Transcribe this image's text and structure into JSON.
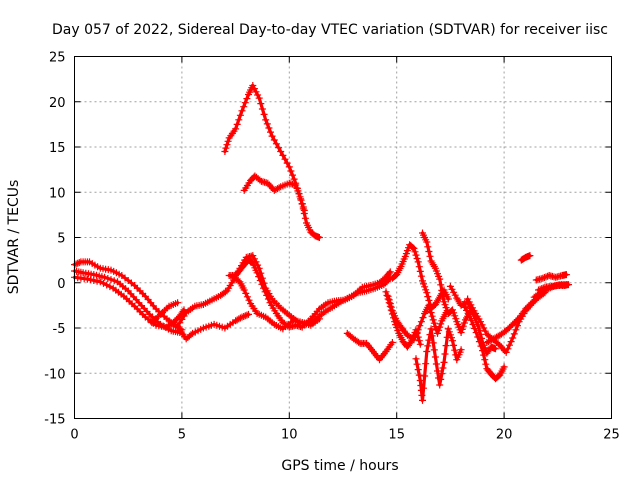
{
  "chart_data": {
    "type": "scatter",
    "title": "Day 057 of 2022, Sidereal Day-to-day VTEC variation (SDTVAR) for receiver iisc",
    "xlabel": "GPS time / hours",
    "ylabel": "SDTVAR / TECUs",
    "xlim": [
      0,
      25
    ],
    "ylim": [
      -15,
      25
    ],
    "xticks": [
      0,
      5,
      10,
      15,
      20,
      25
    ],
    "yticks": [
      -15,
      -10,
      -5,
      0,
      5,
      10,
      15,
      20,
      25
    ],
    "grid": true,
    "marker": "+",
    "color": "#ff0000",
    "series": [
      {
        "name": "s1",
        "points": [
          [
            0.0,
            2.0
          ],
          [
            0.3,
            2.3
          ],
          [
            0.7,
            2.3
          ],
          [
            1.2,
            1.6
          ],
          [
            1.7,
            1.4
          ],
          [
            2.2,
            0.8
          ],
          [
            2.8,
            -0.3
          ],
          [
            3.3,
            -1.5
          ],
          [
            3.8,
            -2.9
          ],
          [
            4.3,
            -4.0
          ],
          [
            4.7,
            -4.8
          ],
          [
            5.0,
            -5.2
          ]
        ]
      },
      {
        "name": "s2",
        "points": [
          [
            0.0,
            1.3
          ],
          [
            0.4,
            1.1
          ],
          [
            0.9,
            0.9
          ],
          [
            1.4,
            0.6
          ],
          [
            2.0,
            0.1
          ],
          [
            2.5,
            -0.9
          ],
          [
            3.0,
            -2.2
          ],
          [
            3.5,
            -3.5
          ],
          [
            4.0,
            -4.6
          ],
          [
            4.5,
            -5.3
          ],
          [
            4.9,
            -5.5
          ]
        ]
      },
      {
        "name": "s3",
        "points": [
          [
            0.0,
            0.6
          ],
          [
            0.6,
            0.4
          ],
          [
            1.2,
            0.1
          ],
          [
            1.8,
            -0.6
          ],
          [
            2.3,
            -1.5
          ],
          [
            2.8,
            -2.6
          ],
          [
            3.3,
            -3.8
          ],
          [
            3.8,
            -4.7
          ],
          [
            4.3,
            -4.9
          ],
          [
            4.6,
            -4.4
          ],
          [
            4.9,
            -3.7
          ],
          [
            5.1,
            -3.0
          ]
        ]
      },
      {
        "name": "s4",
        "points": [
          [
            3.6,
            -4.4
          ],
          [
            4.0,
            -3.5
          ],
          [
            4.4,
            -2.6
          ],
          [
            4.8,
            -2.2
          ]
        ]
      },
      {
        "name": "s5",
        "points": [
          [
            4.9,
            -5.2
          ],
          [
            5.2,
            -6.2
          ],
          [
            5.5,
            -5.6
          ],
          [
            6.0,
            -5.0
          ],
          [
            6.5,
            -4.6
          ],
          [
            7.0,
            -5.0
          ],
          [
            7.5,
            -4.2
          ],
          [
            7.8,
            -3.8
          ],
          [
            8.1,
            -3.5
          ]
        ]
      },
      {
        "name": "s6",
        "points": [
          [
            4.8,
            -4.8
          ],
          [
            5.2,
            -3.3
          ],
          [
            5.6,
            -2.6
          ],
          [
            6.0,
            -2.4
          ],
          [
            6.4,
            -1.9
          ],
          [
            6.8,
            -1.4
          ],
          [
            7.1,
            -0.9
          ],
          [
            7.4,
            0.3
          ],
          [
            7.7,
            1.6
          ],
          [
            8.0,
            2.8
          ],
          [
            8.3,
            3.0
          ],
          [
            8.6,
            1.6
          ],
          [
            8.9,
            -0.6
          ],
          [
            9.2,
            -1.8
          ],
          [
            9.6,
            -2.8
          ],
          [
            10.0,
            -3.6
          ],
          [
            10.4,
            -4.3
          ],
          [
            10.8,
            -4.5
          ],
          [
            11.2,
            -4.1
          ],
          [
            11.6,
            -3.3
          ],
          [
            12.0,
            -2.7
          ],
          [
            12.4,
            -2.1
          ],
          [
            12.8,
            -1.6
          ],
          [
            13.2,
            -1.1
          ],
          [
            13.6,
            -0.9
          ],
          [
            14.0,
            -0.6
          ],
          [
            14.4,
            -0.2
          ],
          [
            14.7,
            0.5
          ]
        ]
      },
      {
        "name": "s7",
        "points": [
          [
            7.2,
            0.8
          ],
          [
            7.5,
            0.8
          ],
          [
            7.7,
            1.4
          ],
          [
            7.9,
            2.0
          ],
          [
            8.1,
            2.5
          ],
          [
            8.3,
            2.2
          ],
          [
            8.5,
            1.1
          ],
          [
            8.8,
            -0.6
          ],
          [
            9.1,
            -2.2
          ],
          [
            9.4,
            -3.4
          ],
          [
            9.7,
            -4.4
          ],
          [
            10.0,
            -4.9
          ],
          [
            10.3,
            -4.7
          ],
          [
            10.6,
            -4.9
          ],
          [
            11.0,
            -4.0
          ],
          [
            11.4,
            -2.9
          ],
          [
            11.8,
            -2.2
          ],
          [
            12.2,
            -2.0
          ],
          [
            12.6,
            -1.9
          ],
          [
            13.0,
            -1.4
          ],
          [
            13.4,
            -0.5
          ],
          [
            13.8,
            -0.3
          ],
          [
            14.2,
            0.0
          ],
          [
            14.5,
            0.6
          ],
          [
            14.7,
            1.2
          ]
        ]
      },
      {
        "name": "s8",
        "points": [
          [
            7.4,
            0.6
          ],
          [
            7.7,
            0.1
          ],
          [
            7.9,
            -0.8
          ],
          [
            8.2,
            -2.3
          ],
          [
            8.5,
            -3.4
          ],
          [
            8.9,
            -3.8
          ],
          [
            9.3,
            -4.6
          ],
          [
            9.7,
            -5.1
          ],
          [
            10.2,
            -4.1
          ],
          [
            10.6,
            -4.4
          ],
          [
            11.0,
            -4.7
          ],
          [
            11.4,
            -4.0
          ]
        ]
      },
      {
        "name": "s9",
        "points": [
          [
            7.0,
            14.5
          ],
          [
            7.2,
            16.0
          ],
          [
            7.5,
            17.0
          ],
          [
            7.8,
            19.0
          ],
          [
            8.1,
            20.8
          ],
          [
            8.3,
            21.8
          ],
          [
            8.6,
            20.4
          ],
          [
            8.9,
            18.0
          ],
          [
            9.2,
            16.2
          ],
          [
            9.6,
            14.5
          ],
          [
            10.0,
            12.8
          ],
          [
            10.3,
            11.0
          ],
          [
            10.6,
            8.7
          ],
          [
            10.8,
            6.6
          ],
          [
            11.0,
            5.6
          ],
          [
            11.2,
            5.2
          ],
          [
            11.4,
            5.0
          ]
        ]
      },
      {
        "name": "s10",
        "points": [
          [
            7.9,
            10.2
          ],
          [
            8.2,
            11.3
          ],
          [
            8.4,
            11.8
          ],
          [
            8.7,
            11.2
          ],
          [
            9.0,
            11.0
          ],
          [
            9.3,
            10.2
          ],
          [
            9.6,
            10.6
          ],
          [
            10.0,
            11.0
          ],
          [
            10.3,
            10.8
          ],
          [
            10.5,
            9.5
          ],
          [
            10.7,
            8.0
          ]
        ]
      },
      {
        "name": "s11",
        "points": [
          [
            12.7,
            -5.6
          ],
          [
            13.0,
            -6.2
          ],
          [
            13.3,
            -6.7
          ],
          [
            13.6,
            -6.7
          ],
          [
            13.9,
            -7.6
          ],
          [
            14.2,
            -8.5
          ],
          [
            14.5,
            -7.6
          ],
          [
            14.8,
            -6.6
          ]
        ]
      },
      {
        "name": "s12",
        "points": [
          [
            14.5,
            -1.0
          ],
          [
            14.7,
            -2.6
          ],
          [
            14.9,
            -4.3
          ],
          [
            15.1,
            -5.6
          ],
          [
            15.3,
            -6.5
          ],
          [
            15.5,
            -7.1
          ],
          [
            15.7,
            -6.4
          ],
          [
            15.9,
            -5.2
          ],
          [
            16.1,
            -6.8
          ]
        ]
      },
      {
        "name": "s13",
        "points": [
          [
            14.8,
            0.5
          ],
          [
            15.0,
            0.9
          ],
          [
            15.2,
            1.8
          ],
          [
            15.4,
            2.9
          ],
          [
            15.6,
            4.2
          ],
          [
            15.8,
            3.8
          ],
          [
            16.0,
            2.3
          ],
          [
            16.2,
            0.2
          ],
          [
            16.4,
            -1.1
          ],
          [
            16.6,
            -2.8
          ],
          [
            16.8,
            -2.4
          ],
          [
            17.0,
            -1.6
          ],
          [
            17.2,
            -0.8
          ],
          [
            17.4,
            -1.8
          ]
        ]
      },
      {
        "name": "s14",
        "points": [
          [
            14.6,
            -1.5
          ],
          [
            14.8,
            -3.1
          ],
          [
            15.0,
            -4.2
          ],
          [
            15.2,
            -4.9
          ],
          [
            15.5,
            -5.8
          ],
          [
            15.8,
            -6.3
          ],
          [
            16.0,
            -5.2
          ],
          [
            16.3,
            -3.4
          ],
          [
            16.5,
            -2.5
          ],
          [
            16.7,
            -4.1
          ],
          [
            16.9,
            -5.6
          ],
          [
            17.1,
            -4.2
          ],
          [
            17.3,
            -3.3
          ]
        ]
      },
      {
        "name": "s15",
        "points": [
          [
            15.9,
            -8.4
          ],
          [
            16.1,
            -10.8
          ],
          [
            16.2,
            -13.0
          ],
          [
            16.4,
            -7.6
          ],
          [
            16.6,
            -5.1
          ],
          [
            16.8,
            -8.2
          ],
          [
            17.0,
            -11.3
          ],
          [
            17.2,
            -8.8
          ],
          [
            17.4,
            -5.1
          ],
          [
            17.6,
            -6.4
          ],
          [
            17.8,
            -8.5
          ],
          [
            18.0,
            -7.4
          ]
        ]
      },
      {
        "name": "s16",
        "points": [
          [
            16.2,
            5.5
          ],
          [
            16.4,
            4.5
          ],
          [
            16.6,
            2.4
          ],
          [
            16.8,
            1.6
          ],
          [
            17.0,
            0.4
          ],
          [
            17.2,
            -2.1
          ],
          [
            17.4,
            -3.4
          ],
          [
            17.6,
            -3.0
          ],
          [
            17.8,
            -4.3
          ],
          [
            18.0,
            -5.5
          ],
          [
            18.2,
            -4.1
          ],
          [
            18.4,
            -3.3
          ]
        ]
      },
      {
        "name": "s17",
        "points": [
          [
            17.5,
            -0.4
          ],
          [
            17.8,
            -1.7
          ],
          [
            18.0,
            -2.5
          ],
          [
            18.3,
            -2.1
          ],
          [
            18.5,
            -3.1
          ],
          [
            18.8,
            -4.8
          ],
          [
            19.0,
            -6.6
          ],
          [
            19.2,
            -7.8
          ],
          [
            19.4,
            -7.1
          ],
          [
            19.6,
            -7.3
          ]
        ]
      },
      {
        "name": "s18",
        "points": [
          [
            18.1,
            -2.4
          ],
          [
            18.4,
            -3.7
          ],
          [
            18.7,
            -5.5
          ],
          [
            19.0,
            -7.5
          ],
          [
            19.2,
            -9.5
          ],
          [
            19.4,
            -10.1
          ],
          [
            19.6,
            -10.6
          ],
          [
            19.8,
            -10.2
          ],
          [
            20.0,
            -9.3
          ]
        ]
      },
      {
        "name": "s19",
        "points": [
          [
            18.3,
            -1.8
          ],
          [
            18.6,
            -3.1
          ],
          [
            18.9,
            -4.3
          ],
          [
            19.2,
            -5.7
          ],
          [
            19.5,
            -6.3
          ],
          [
            19.8,
            -6.9
          ],
          [
            20.1,
            -7.7
          ],
          [
            20.4,
            -6.1
          ],
          [
            20.7,
            -4.3
          ],
          [
            21.0,
            -3.1
          ],
          [
            21.3,
            -2.3
          ],
          [
            21.6,
            -1.6
          ],
          [
            21.9,
            -1.1
          ]
        ]
      },
      {
        "name": "s20",
        "points": [
          [
            19.2,
            -6.6
          ],
          [
            19.5,
            -6.2
          ],
          [
            19.8,
            -5.8
          ],
          [
            20.1,
            -5.3
          ],
          [
            20.4,
            -4.6
          ],
          [
            20.7,
            -3.9
          ],
          [
            21.0,
            -2.9
          ],
          [
            21.3,
            -2.2
          ],
          [
            21.6,
            -1.5
          ],
          [
            21.9,
            -0.9
          ]
        ]
      },
      {
        "name": "s21",
        "points": [
          [
            20.8,
            2.5
          ],
          [
            21.0,
            2.8
          ],
          [
            21.2,
            3.0
          ]
        ]
      },
      {
        "name": "s22",
        "points": [
          [
            21.5,
            0.3
          ],
          [
            21.8,
            0.5
          ],
          [
            22.1,
            0.8
          ],
          [
            22.4,
            0.6
          ],
          [
            22.7,
            0.8
          ],
          [
            22.9,
            0.9
          ]
        ]
      },
      {
        "name": "s23",
        "points": [
          [
            21.6,
            -0.8
          ],
          [
            21.9,
            -0.5
          ],
          [
            22.2,
            -0.4
          ],
          [
            22.5,
            -0.3
          ],
          [
            22.8,
            -0.3
          ],
          [
            23.0,
            -0.2
          ]
        ]
      },
      {
        "name": "s24",
        "points": [
          [
            21.4,
            -1.6
          ],
          [
            21.7,
            -1.1
          ],
          [
            22.0,
            -0.7
          ],
          [
            22.3,
            -0.4
          ],
          [
            22.6,
            -0.2
          ],
          [
            22.9,
            -0.2
          ]
        ]
      }
    ]
  }
}
